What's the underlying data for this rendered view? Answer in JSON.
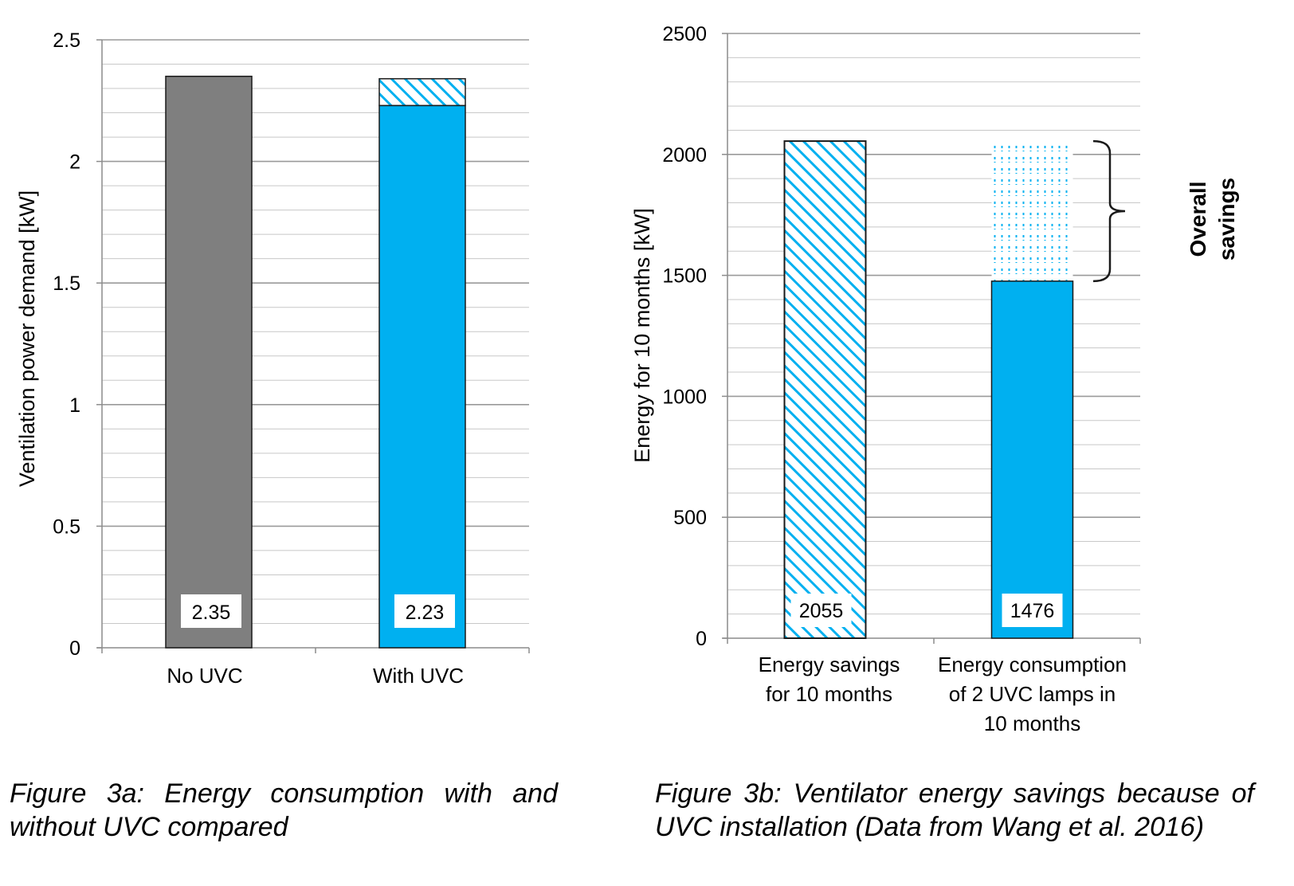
{
  "chart_data": [
    {
      "type": "bar",
      "title": "",
      "categories": [
        "No UVC",
        "With UVC"
      ],
      "series": [
        {
          "values": [
            2.35,
            2.23
          ]
        }
      ],
      "stacked_top": [
        0,
        0.11
      ],
      "stacked_top_pattern": "hatched",
      "data_labels": [
        "2.35",
        "2.23"
      ],
      "ylabel": "Ventilation power demand [kW]",
      "xlabel": "",
      "ylim": [
        0,
        2.5
      ],
      "yticks": [
        0,
        0.5,
        1,
        1.5,
        2,
        2.5
      ],
      "ytick_labels": [
        "0",
        "0.5",
        "1",
        "1.5",
        "2",
        "2.5"
      ],
      "grid": true,
      "colors": {
        "no_uvc": "#7f7f7f",
        "with_uvc": "#00b0f0"
      },
      "caption": "Figure 3a: Energy consumption with and without UVC compared"
    },
    {
      "type": "bar",
      "title": "",
      "categories": [
        "Energy savings for 10 months",
        "Energy consumption of 2 UVC lamps in 10 months"
      ],
      "category_lines": [
        [
          "Energy savings",
          "for 10 months"
        ],
        [
          "Energy consumption",
          "of 2 UVC lamps in",
          "10 months"
        ]
      ],
      "series": [
        {
          "values": [
            2055,
            1476
          ]
        }
      ],
      "dotted_extension_to": 2055,
      "data_labels": [
        "2055",
        "1476"
      ],
      "ylabel": "Energy for 10 months [kW]",
      "xlabel": "",
      "ylim": [
        0,
        2500
      ],
      "yticks": [
        0,
        500,
        1000,
        1500,
        2000,
        2500
      ],
      "ytick_labels": [
        "0",
        "500",
        "1000",
        "1500",
        "2000",
        "2500"
      ],
      "grid": true,
      "annotation": [
        "Overall",
        "savings"
      ],
      "colors": {
        "hatch": "#00b0f0",
        "solid": "#00b0f0"
      },
      "caption": "Figure 3b: Ventilator energy savings because of UVC installation (Data from Wang et al. 2016)"
    }
  ]
}
